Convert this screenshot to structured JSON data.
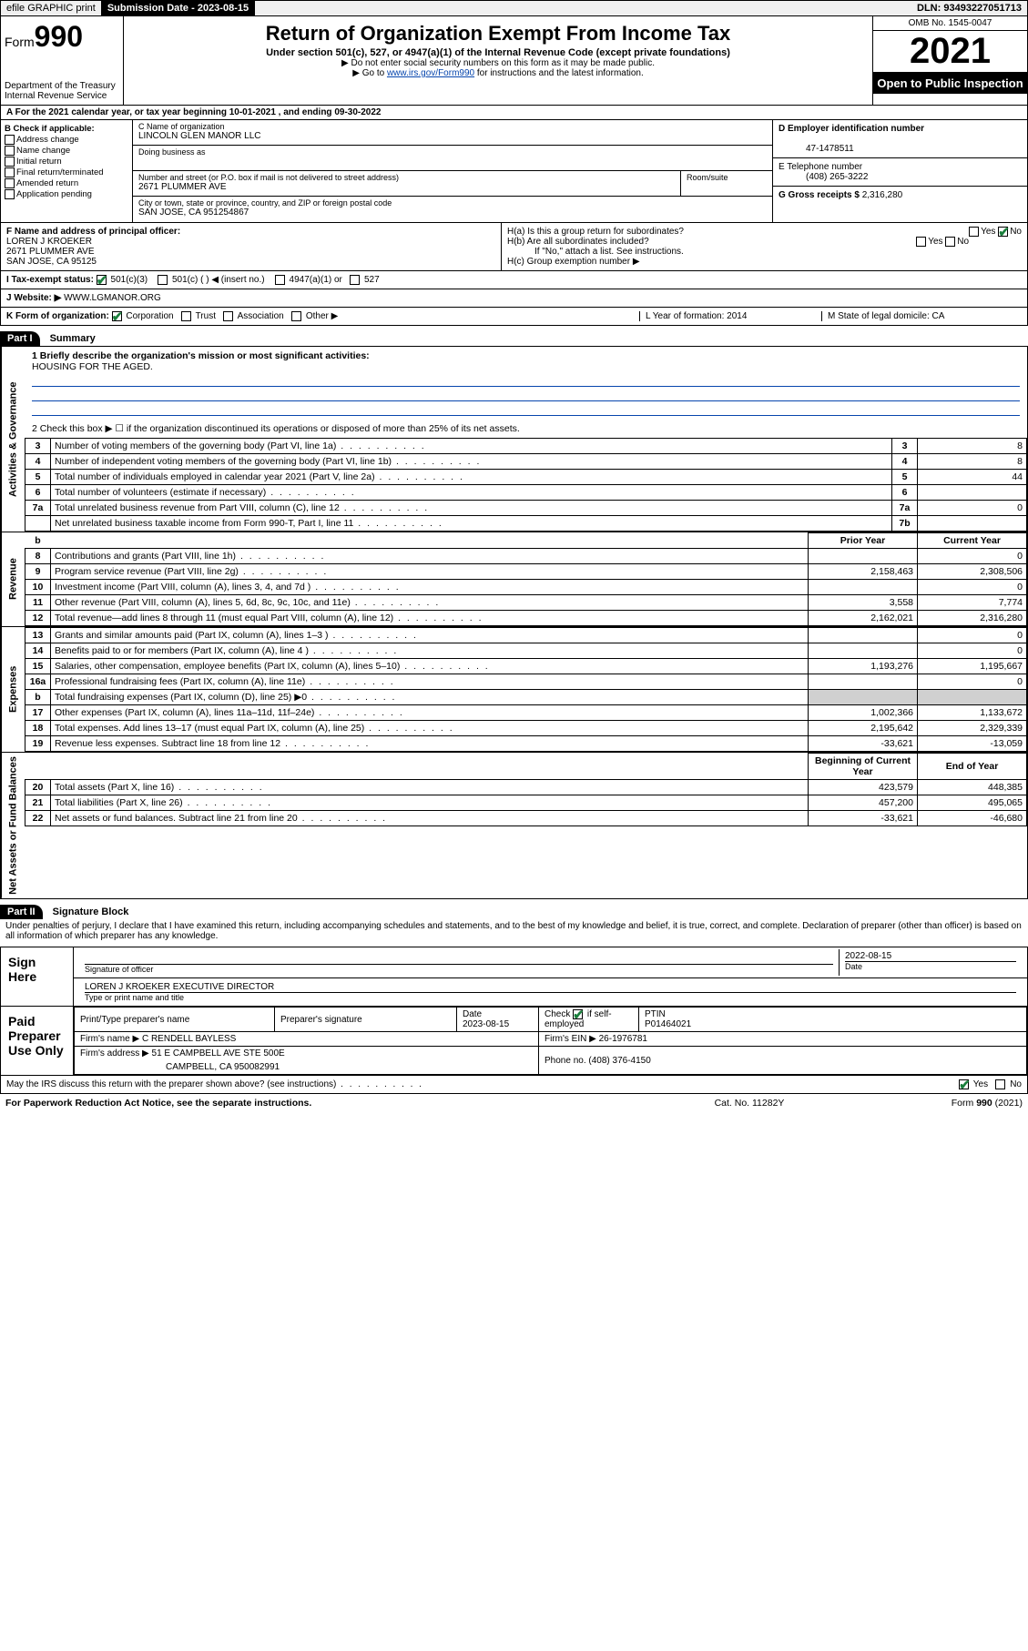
{
  "topbar": {
    "efile": "efile GRAPHIC print",
    "submission_label": "Submission Date - 2023-08-15",
    "dln": "DLN: 93493227051713"
  },
  "header": {
    "form_prefix": "Form",
    "form_number": "990",
    "dept": "Department of the Treasury",
    "irs": "Internal Revenue Service",
    "title": "Return of Organization Exempt From Income Tax",
    "subtitle": "Under section 501(c), 527, or 4947(a)(1) of the Internal Revenue Code (except private foundations)",
    "note1": "▶ Do not enter social security numbers on this form as it may be made public.",
    "note2_pre": "▶ Go to ",
    "note2_link": "www.irs.gov/Form990",
    "note2_post": " for instructions and the latest information.",
    "omb": "OMB No. 1545-0047",
    "year": "2021",
    "open": "Open to Public Inspection"
  },
  "row_a": "A For the 2021 calendar year, or tax year beginning 10-01-2021   , and ending 09-30-2022",
  "section_b": {
    "label": "B Check if applicable:",
    "items": [
      "Address change",
      "Name change",
      "Initial return",
      "Final return/terminated",
      "Amended return",
      "Application pending"
    ]
  },
  "section_c": {
    "name_label": "C Name of organization",
    "name": "LINCOLN GLEN MANOR LLC",
    "dba_label": "Doing business as",
    "dba": "",
    "addr_label": "Number and street (or P.O. box if mail is not delivered to street address)",
    "room_label": "Room/suite",
    "addr": "2671 PLUMMER AVE",
    "city_label": "City or town, state or province, country, and ZIP or foreign postal code",
    "city": "SAN JOSE, CA  951254867"
  },
  "section_d": {
    "label": "D Employer identification number",
    "value": "47-1478511"
  },
  "section_e": {
    "label": "E Telephone number",
    "value": "(408) 265-3222"
  },
  "section_g": {
    "label": "G Gross receipts $",
    "value": "2,316,280"
  },
  "section_f": {
    "label": "F  Name and address of principal officer:",
    "name": "LOREN J KROEKER",
    "addr1": "2671 PLUMMER AVE",
    "addr2": "SAN JOSE, CA  95125"
  },
  "section_h": {
    "ha": "H(a)  Is this a group return for subordinates?",
    "hb": "H(b)  Are all subordinates included?",
    "hb_note": "If \"No,\" attach a list. See instructions.",
    "hc": "H(c)  Group exemption number ▶",
    "yes": "Yes",
    "no": "No"
  },
  "row_i": {
    "label": "I   Tax-exempt status:",
    "opts": [
      "501(c)(3)",
      "501(c) (  ) ◀ (insert no.)",
      "4947(a)(1) or",
      "527"
    ]
  },
  "row_j": {
    "label": "J   Website: ▶",
    "value": "WWW.LGMANOR.ORG"
  },
  "row_k": {
    "label": "K Form of organization:",
    "opts": [
      "Corporation",
      "Trust",
      "Association",
      "Other ▶"
    ],
    "l": "L Year of formation: 2014",
    "m": "M State of legal domicile: CA"
  },
  "part1": {
    "hdr": "Part I",
    "title": "Summary"
  },
  "mission": {
    "q1": "1   Briefly describe the organization's mission or most significant activities:",
    "text": "HOUSING FOR THE AGED.",
    "q2": "2   Check this box ▶ ☐  if the organization discontinued its operations or disposed of more than 25% of its net assets."
  },
  "gov_lines": [
    {
      "n": "3",
      "t": "Number of voting members of the governing body (Part VI, line 1a)",
      "r": "3",
      "v": "8"
    },
    {
      "n": "4",
      "t": "Number of independent voting members of the governing body (Part VI, line 1b)",
      "r": "4",
      "v": "8"
    },
    {
      "n": "5",
      "t": "Total number of individuals employed in calendar year 2021 (Part V, line 2a)",
      "r": "5",
      "v": "44"
    },
    {
      "n": "6",
      "t": "Total number of volunteers (estimate if necessary)",
      "r": "6",
      "v": ""
    },
    {
      "n": "7a",
      "t": "Total unrelated business revenue from Part VIII, column (C), line 12",
      "r": "7a",
      "v": "0"
    },
    {
      "n": "",
      "t": "Net unrelated business taxable income from Form 990-T, Part I, line 11",
      "r": "7b",
      "v": ""
    }
  ],
  "col_hdrs": {
    "b": "b",
    "prior": "Prior Year",
    "current": "Current Year"
  },
  "rev_lines": [
    {
      "n": "8",
      "t": "Contributions and grants (Part VIII, line 1h)",
      "p": "",
      "c": "0"
    },
    {
      "n": "9",
      "t": "Program service revenue (Part VIII, line 2g)",
      "p": "2,158,463",
      "c": "2,308,506"
    },
    {
      "n": "10",
      "t": "Investment income (Part VIII, column (A), lines 3, 4, and 7d )",
      "p": "",
      "c": "0"
    },
    {
      "n": "11",
      "t": "Other revenue (Part VIII, column (A), lines 5, 6d, 8c, 9c, 10c, and 11e)",
      "p": "3,558",
      "c": "7,774"
    },
    {
      "n": "12",
      "t": "Total revenue—add lines 8 through 11 (must equal Part VIII, column (A), line 12)",
      "p": "2,162,021",
      "c": "2,316,280"
    }
  ],
  "exp_lines": [
    {
      "n": "13",
      "t": "Grants and similar amounts paid (Part IX, column (A), lines 1–3 )",
      "p": "",
      "c": "0"
    },
    {
      "n": "14",
      "t": "Benefits paid to or for members (Part IX, column (A), line 4 )",
      "p": "",
      "c": "0"
    },
    {
      "n": "15",
      "t": "Salaries, other compensation, employee benefits (Part IX, column (A), lines 5–10)",
      "p": "1,193,276",
      "c": "1,195,667"
    },
    {
      "n": "16a",
      "t": "Professional fundraising fees (Part IX, column (A), line 11e)",
      "p": "",
      "c": "0"
    },
    {
      "n": "b",
      "t": "Total fundraising expenses (Part IX, column (D), line 25) ▶0",
      "p": "shade",
      "c": "shade"
    },
    {
      "n": "17",
      "t": "Other expenses (Part IX, column (A), lines 11a–11d, 11f–24e)",
      "p": "1,002,366",
      "c": "1,133,672"
    },
    {
      "n": "18",
      "t": "Total expenses. Add lines 13–17 (must equal Part IX, column (A), line 25)",
      "p": "2,195,642",
      "c": "2,329,339"
    },
    {
      "n": "19",
      "t": "Revenue less expenses. Subtract line 18 from line 12",
      "p": "-33,621",
      "c": "-13,059"
    }
  ],
  "na_hdrs": {
    "b": "Beginning of Current Year",
    "e": "End of Year"
  },
  "na_lines": [
    {
      "n": "20",
      "t": "Total assets (Part X, line 16)",
      "p": "423,579",
      "c": "448,385"
    },
    {
      "n": "21",
      "t": "Total liabilities (Part X, line 26)",
      "p": "457,200",
      "c": "495,065"
    },
    {
      "n": "22",
      "t": "Net assets or fund balances. Subtract line 21 from line 20",
      "p": "-33,621",
      "c": "-46,680"
    }
  ],
  "part2": {
    "hdr": "Part II",
    "title": "Signature Block"
  },
  "penalty": "Under penalties of perjury, I declare that I have examined this return, including accompanying schedules and statements, and to the best of my knowledge and belief, it is true, correct, and complete. Declaration of preparer (other than officer) is based on all information of which preparer has any knowledge.",
  "sign": {
    "label": "Sign Here",
    "sig_label": "Signature of officer",
    "date": "2022-08-15",
    "date_label": "Date",
    "name": "LOREN J KROEKER  EXECUTIVE DIRECTOR",
    "name_label": "Type or print name and title"
  },
  "prep": {
    "label": "Paid Preparer Use Only",
    "r1": {
      "c1": "Print/Type preparer's name",
      "c2": "Preparer's signature",
      "c3": "Date",
      "c3v": "2023-08-15",
      "c4": "Check ☑ if self-employed",
      "c5": "PTIN",
      "c5v": "P01464021"
    },
    "r2": {
      "c1": "Firm's name    ▶",
      "c1v": "C RENDELL BAYLESS",
      "c2": "Firm's EIN ▶",
      "c2v": "26-1976781"
    },
    "r3": {
      "c1": "Firm's address ▶",
      "c1v": "51 E CAMPBELL AVE STE 500E",
      "c2": "Phone no.",
      "c2v": "(408) 376-4150"
    },
    "r3b": "CAMPBELL, CA  950082991"
  },
  "discuss": "May the IRS discuss this return with the preparer shown above? (see instructions)",
  "footer": {
    "l": "For Paperwork Reduction Act Notice, see the separate instructions.",
    "c": "Cat. No. 11282Y",
    "r": "Form 990 (2021)"
  },
  "vtabs": {
    "gov": "Activities & Governance",
    "rev": "Revenue",
    "exp": "Expenses",
    "na": "Net Assets or Fund Balances"
  }
}
